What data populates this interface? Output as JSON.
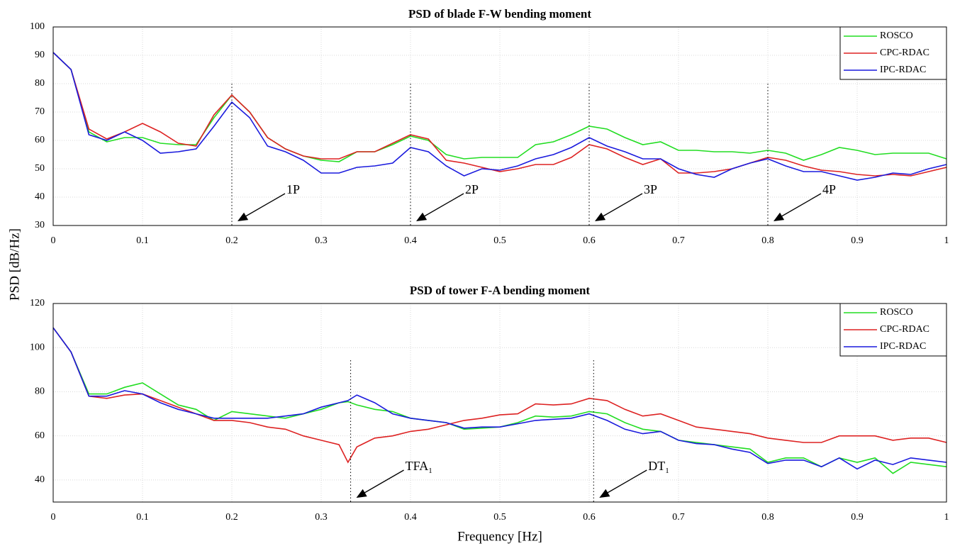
{
  "chart_data": [
    {
      "type": "line",
      "title": "PSD of blade F-W bending moment",
      "ylabel": "PSD [dB/Hz]",
      "x": [
        0,
        0.02,
        0.04,
        0.06,
        0.08,
        0.1,
        0.12,
        0.14,
        0.16,
        0.18,
        0.2,
        0.22,
        0.24,
        0.26,
        0.28,
        0.3,
        0.32,
        0.34,
        0.36,
        0.38,
        0.4,
        0.42,
        0.44,
        0.46,
        0.48,
        0.5,
        0.52,
        0.54,
        0.56,
        0.58,
        0.6,
        0.62,
        0.64,
        0.66,
        0.68,
        0.7,
        0.72,
        0.74,
        0.76,
        0.78,
        0.8,
        0.82,
        0.84,
        0.86,
        0.88,
        0.9,
        0.92,
        0.94,
        0.96,
        0.98,
        1
      ],
      "series": [
        {
          "name": "ROSCO",
          "color": "#22dd22",
          "values": [
            91,
            85,
            63,
            59.5,
            61,
            61,
            59,
            58.5,
            58.5,
            68,
            76,
            70,
            61,
            57,
            54.5,
            53,
            52.5,
            56,
            56,
            58.5,
            61.5,
            60,
            55,
            53.5,
            54,
            54,
            54,
            58.5,
            59.5,
            62,
            65,
            64,
            61,
            58.5,
            59.5,
            56.5,
            56.5,
            56,
            56,
            55.5,
            56.5,
            55.5,
            53,
            55,
            57.5,
            56.5,
            55,
            55.5,
            55.5,
            55.5,
            53.5
          ]
        },
        {
          "name": "CPC-RDAC",
          "color": "#dd2222",
          "values": [
            91,
            85,
            64,
            60.5,
            63,
            66,
            63,
            59,
            58,
            69,
            76,
            70,
            61,
            57,
            54.5,
            53.5,
            53.5,
            56,
            56,
            59,
            62,
            60.5,
            53,
            52,
            50.5,
            49,
            50,
            51.5,
            51.5,
            54,
            58.5,
            57,
            54,
            51.5,
            53.5,
            48.5,
            48.5,
            49,
            50,
            52,
            54,
            53,
            51,
            49.5,
            49,
            48,
            47.5,
            48,
            47.5,
            49,
            50.5
          ]
        },
        {
          "name": "IPC-RDAC",
          "color": "#1a1add",
          "values": [
            91,
            85,
            62,
            60,
            63,
            60,
            55.5,
            56,
            57,
            65,
            73.5,
            68,
            58,
            56,
            53,
            48.5,
            48.5,
            50.5,
            51,
            52,
            57.5,
            56,
            51,
            47.5,
            50,
            49.5,
            51,
            53.5,
            55,
            57.5,
            61,
            58,
            56,
            53.5,
            53.5,
            50,
            48,
            47,
            50,
            52,
            53.5,
            51,
            49,
            49,
            47.5,
            46,
            47,
            48.5,
            48,
            50,
            51.5
          ]
        }
      ],
      "xlim": [
        0,
        1
      ],
      "xticks": [
        0,
        0.1,
        0.2,
        0.3,
        0.4,
        0.5,
        0.6,
        0.7,
        0.8,
        0.9,
        1
      ],
      "ylim": [
        30,
        100
      ],
      "yticks": [
        30,
        40,
        50,
        60,
        70,
        80,
        90,
        100
      ],
      "grid": true,
      "legend": "upper right",
      "annotations": [
        {
          "x": 0.2,
          "text": "1P"
        },
        {
          "x": 0.4,
          "text": "2P"
        },
        {
          "x": 0.6,
          "text": "3P"
        },
        {
          "x": 0.8,
          "text": "4P"
        }
      ]
    },
    {
      "type": "line",
      "title": "PSD of tower F-A bending moment",
      "xlabel": "Frequency [Hz]",
      "x": [
        0,
        0.02,
        0.04,
        0.06,
        0.08,
        0.1,
        0.12,
        0.14,
        0.16,
        0.18,
        0.2,
        0.22,
        0.24,
        0.26,
        0.28,
        0.3,
        0.32,
        0.33,
        0.34,
        0.36,
        0.38,
        0.4,
        0.42,
        0.44,
        0.46,
        0.48,
        0.5,
        0.52,
        0.54,
        0.56,
        0.58,
        0.6,
        0.62,
        0.64,
        0.66,
        0.68,
        0.7,
        0.72,
        0.74,
        0.76,
        0.78,
        0.8,
        0.82,
        0.84,
        0.86,
        0.88,
        0.9,
        0.92,
        0.94,
        0.96,
        0.98,
        1
      ],
      "series": [
        {
          "name": "ROSCO",
          "color": "#22dd22",
          "values": [
            109,
            98,
            79,
            79,
            82,
            84,
            79,
            74,
            72,
            67,
            71,
            70,
            69,
            68,
            70,
            72,
            75,
            75.5,
            74,
            72,
            71,
            68,
            67,
            66,
            63,
            63.5,
            64,
            66,
            69,
            68.5,
            69,
            71,
            70,
            66,
            63,
            62,
            58,
            57,
            56,
            55,
            54,
            48,
            50,
            50,
            46,
            50,
            48,
            50,
            43,
            48,
            47,
            46
          ]
        },
        {
          "name": "CPC-RDAC",
          "color": "#dd2222",
          "values": [
            109,
            98,
            78,
            77,
            78.5,
            79,
            76,
            73,
            70,
            67,
            67,
            66,
            64,
            63,
            60,
            58,
            56,
            48,
            55,
            59,
            60,
            62,
            63,
            65,
            67,
            68,
            69.5,
            70,
            74.5,
            74,
            74.5,
            77,
            76,
            72,
            69,
            70,
            67,
            64,
            63,
            62,
            61,
            59,
            58,
            57,
            57,
            60,
            60,
            60,
            58,
            59,
            59,
            57
          ]
        },
        {
          "name": "IPC-RDAC",
          "color": "#1a1add",
          "values": [
            109,
            98,
            78,
            78,
            80.5,
            79,
            75,
            72,
            70,
            68,
            68,
            68,
            68,
            69,
            70,
            73,
            75,
            76,
            78.5,
            75,
            70,
            68,
            67,
            66,
            63.5,
            64,
            64,
            65.5,
            67,
            67.5,
            68,
            70,
            67,
            63,
            61,
            62,
            58,
            56.5,
            56,
            54,
            52.5,
            47.5,
            49,
            49,
            46,
            50,
            45,
            49,
            47,
            50,
            49,
            48
          ]
        }
      ],
      "xlim": [
        0,
        1
      ],
      "xticks": [
        0,
        0.1,
        0.2,
        0.3,
        0.4,
        0.5,
        0.6,
        0.7,
        0.8,
        0.9,
        1
      ],
      "ylim": [
        30,
        120
      ],
      "yticks": [
        40,
        60,
        80,
        100,
        120
      ],
      "grid": true,
      "legend": "upper right",
      "annotations": [
        {
          "x": 0.333,
          "text": "TFA",
          "sub": "1"
        },
        {
          "x": 0.605,
          "text": "DT",
          "sub": "1"
        }
      ]
    }
  ]
}
